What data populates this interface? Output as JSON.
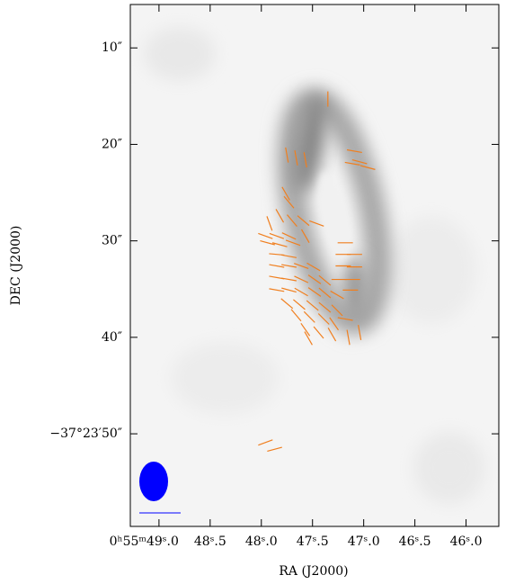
{
  "chart_data": {
    "type": "polarization-map",
    "xlabel": "RA (J2000)",
    "ylabel": "DEC (J2000)",
    "xlim": [
      49.28,
      45.68
    ],
    "ylim": [
      5.5,
      59.6
    ],
    "xticks": [
      {
        "value": 49.0,
        "label": "0ʰ55ᵐ49ˢ.0"
      },
      {
        "value": 48.5,
        "label": "48ˢ.5"
      },
      {
        "value": 48.0,
        "label": "48ˢ.0"
      },
      {
        "value": 47.5,
        "label": "47ˢ.5"
      },
      {
        "value": 47.0,
        "label": "47ˢ.0"
      },
      {
        "value": 46.5,
        "label": "46ˢ.5"
      },
      {
        "value": 46.0,
        "label": "46ˢ.0"
      }
    ],
    "yticks": [
      {
        "value": 10,
        "label": "10″"
      },
      {
        "value": 20,
        "label": "20″"
      },
      {
        "value": 30,
        "label": "30″"
      },
      {
        "value": 40,
        "label": "40″"
      },
      {
        "value": 50,
        "label": "−37°23′50″"
      }
    ],
    "vector_color": "#f07f1f",
    "vectors": {
      "ra": [
        47.35,
        47.75,
        47.66,
        47.57,
        47.09,
        47.04,
        46.96,
        47.11,
        47.76,
        47.73,
        47.92,
        47.82,
        47.7,
        47.59,
        47.96,
        47.85,
        47.73,
        47.57,
        47.46,
        47.94,
        47.82,
        47.69,
        47.18,
        47.2,
        47.09,
        47.2,
        47.09,
        47.85,
        47.73,
        47.85,
        47.73,
        47.61,
        47.49,
        47.85,
        47.73,
        47.61,
        47.48,
        47.38,
        47.24,
        47.11,
        47.85,
        47.73,
        47.61,
        47.48,
        47.38,
        47.26,
        47.13,
        47.75,
        47.63,
        47.5,
        47.38,
        47.26,
        47.66,
        47.53,
        47.39,
        47.29,
        47.18,
        47.57,
        47.44,
        47.31,
        47.15,
        47.04,
        47.54,
        47.96,
        47.87
      ],
      "dec": [
        15.3,
        21.1,
        21.4,
        21.6,
        20.7,
        21.8,
        22.4,
        22.0,
        25.1,
        26.0,
        28.2,
        27.4,
        27.9,
        27.9,
        29.5,
        29.5,
        29.5,
        29.5,
        28.2,
        30.2,
        30.4,
        30.2,
        30.2,
        31.4,
        31.4,
        32.6,
        32.7,
        31.4,
        31.6,
        32.6,
        32.6,
        32.6,
        32.7,
        33.8,
        34.0,
        34.0,
        34.0,
        34.1,
        34.0,
        34.0,
        35.1,
        35.1,
        35.3,
        35.3,
        35.4,
        35.6,
        35.1,
        36.5,
        36.6,
        36.7,
        36.9,
        37.2,
        37.7,
        37.9,
        38.1,
        38.6,
        38.1,
        39.2,
        39.5,
        39.7,
        40.0,
        39.5,
        40.1,
        50.9,
        51.6
      ],
      "angle": [
        90,
        80,
        80,
        80,
        10,
        15,
        15,
        10,
        60,
        50,
        70,
        60,
        50,
        40,
        20,
        20,
        25,
        60,
        20,
        15,
        15,
        20,
        0,
        0,
        0,
        0,
        0,
        5,
        10,
        10,
        10,
        20,
        30,
        10,
        10,
        25,
        35,
        40,
        0,
        0,
        10,
        15,
        30,
        35,
        40,
        30,
        0,
        40,
        40,
        40,
        40,
        45,
        50,
        45,
        45,
        55,
        10,
        55,
        50,
        60,
        80,
        80,
        60,
        -20,
        -15
      ]
    }
  }
}
